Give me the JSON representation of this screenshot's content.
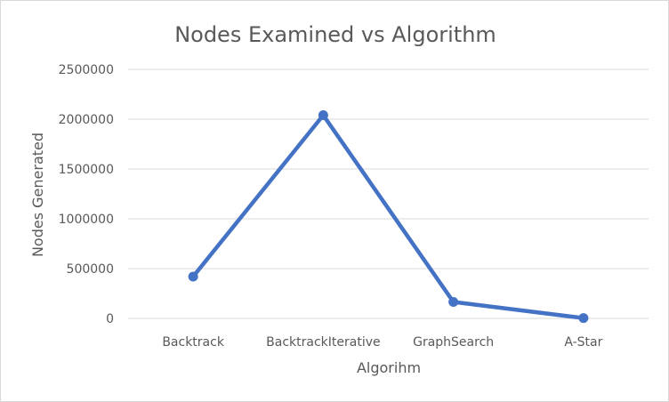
{
  "chart_data": {
    "type": "line",
    "title": "Nodes Examined vs Algorithm",
    "xlabel": "Algorihm",
    "ylabel": "Nodes Generated",
    "categories": [
      "Backtrack",
      "BacktrackIterative",
      "GraphSearch",
      "A-Star"
    ],
    "series": [
      {
        "values": [
          420000,
          2040000,
          165000,
          3000
        ]
      }
    ],
    "ylim": [
      0,
      2500000
    ],
    "yticks": [
      0,
      500000,
      1000000,
      1500000,
      2000000,
      2500000
    ],
    "ytick_labels": [
      "0",
      "500000",
      "1000000",
      "1500000",
      "2000000",
      "2500000"
    ],
    "grid": true,
    "legend": "none",
    "colors": {
      "series": "#4472c4",
      "grid": "#d9d9d9",
      "text": "#595959"
    }
  }
}
